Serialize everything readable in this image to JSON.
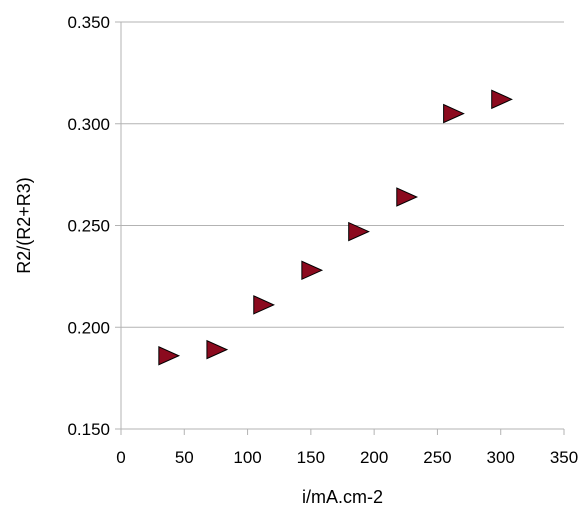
{
  "chart_data": {
    "type": "scatter",
    "title": "",
    "xlabel": "i/mA.cm-2",
    "ylabel": "R2/(R2+R3)",
    "xlim": [
      0,
      350
    ],
    "ylim": [
      0.15,
      0.35
    ],
    "x_ticks": [
      0,
      50,
      100,
      150,
      200,
      250,
      300,
      350
    ],
    "y_ticks": [
      0.15,
      0.2,
      0.25,
      0.3,
      0.35
    ],
    "x_tick_labels": [
      "0",
      "50",
      "100",
      "150",
      "200",
      "250",
      "300",
      "350"
    ],
    "y_tick_labels": [
      "0.150",
      "0.200",
      "0.250",
      "0.300",
      "0.350"
    ],
    "grid": "horizontal",
    "legend": "none",
    "marker": "right-triangle",
    "marker_color": "#8b0a1e",
    "series": [
      {
        "x": [
          37,
          75,
          112,
          150,
          187,
          225,
          262,
          300
        ],
        "y": [
          0.186,
          0.189,
          0.211,
          0.228,
          0.247,
          0.264,
          0.305,
          0.312
        ]
      }
    ]
  }
}
